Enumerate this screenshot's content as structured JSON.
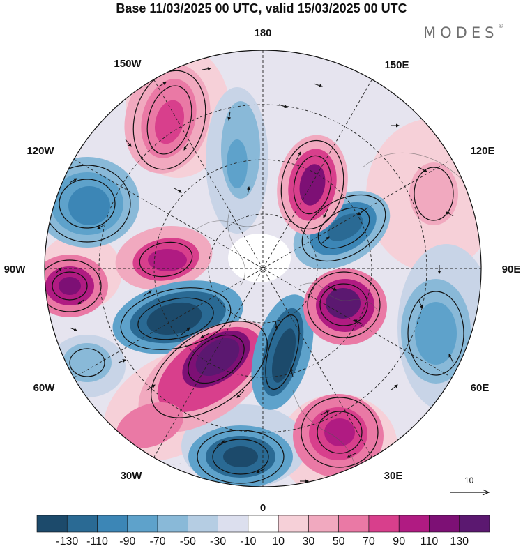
{
  "title": "Base 11/03/2025 00 UTC, valid 15/03/2025 00 UTC",
  "brand": {
    "text": "MODES",
    "mark": "©"
  },
  "projection": "north-polar-stereographic",
  "longitude_labels": {
    "0": "0",
    "30E": "30E",
    "60E": "60E",
    "90E": "90E",
    "120E": "120E",
    "150E": "150E",
    "180": "180",
    "150W": "150W",
    "120W": "120W",
    "90W": "90W",
    "60W": "60W",
    "30W": "30W"
  },
  "vector_reference": {
    "label": "10",
    "arrow": "right-arrow-icon"
  },
  "colorbar": {
    "ticks": [
      "-130",
      "-110",
      "-90",
      "-70",
      "-50",
      "-30",
      "-10",
      "10",
      "30",
      "50",
      "70",
      "90",
      "110",
      "130"
    ],
    "colors": [
      "#1c4a6b",
      "#2a6a94",
      "#3c86b6",
      "#5ea2cb",
      "#89b9d8",
      "#b5cde3",
      "#dcdfee",
      "#ffffff",
      "#f6d0d8",
      "#f1a9bf",
      "#ea79a5",
      "#d83f8c",
      "#b01b82",
      "#7d1075",
      "#5b1870"
    ]
  },
  "anomaly_centers": [
    {
      "lon_label": "150W",
      "sign": "positive",
      "level": 90
    },
    {
      "lon_label": "120W",
      "sign": "negative",
      "level": -90
    },
    {
      "lon_label": "90W",
      "sign": "positive",
      "level": 110
    },
    {
      "lon_label": "60W",
      "sign": "negative",
      "level": -110
    },
    {
      "lon_label": "30W",
      "sign": "positive",
      "level": 130
    },
    {
      "lon_label": "0",
      "sign": "negative",
      "level": -110
    },
    {
      "lon_label": "30E",
      "sign": "positive",
      "level": 110
    },
    {
      "lon_label": "60E",
      "sign": "negative",
      "level": -70
    },
    {
      "lon_label": "90E",
      "sign": "positive",
      "level": 130
    },
    {
      "lon_label": "120E",
      "sign": "negative",
      "level": -110
    },
    {
      "lon_label": "150E",
      "sign": "positive",
      "level": 110
    }
  ]
}
